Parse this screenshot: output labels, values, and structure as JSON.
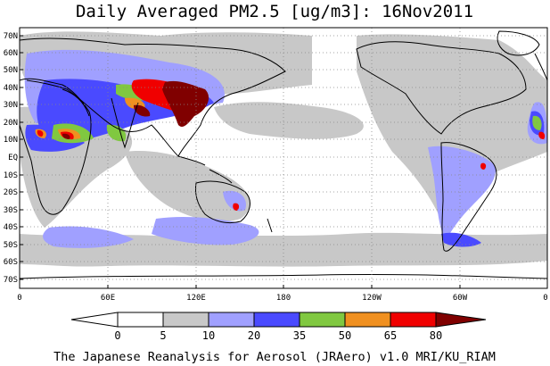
{
  "title": "Daily Averaged PM2.5 [ug/m3]: 16Nov2011",
  "footer": "The Japanese Reanalysis for Aerosol (JRAero) v1.0 MRI/KU_RIAM",
  "lat_labels": [
    "70N",
    "60N",
    "50N",
    "40N",
    "30N",
    "20N",
    "10N",
    "EQ",
    "10S",
    "20S",
    "30S",
    "40S",
    "50S",
    "60S",
    "70S"
  ],
  "lon_labels": [
    "0",
    "60E",
    "120E",
    "180",
    "120W",
    "60W",
    "0"
  ],
  "colorbar": {
    "labels": [
      "0",
      "5",
      "10",
      "20",
      "35",
      "50",
      "65",
      "80"
    ],
    "colors": [
      "#ffffff",
      "#c8c8c8",
      "#a0a0ff",
      "#4a4aff",
      "#80c840",
      "#f09020",
      "#f00000",
      "#800000",
      "#a01010"
    ]
  }
}
